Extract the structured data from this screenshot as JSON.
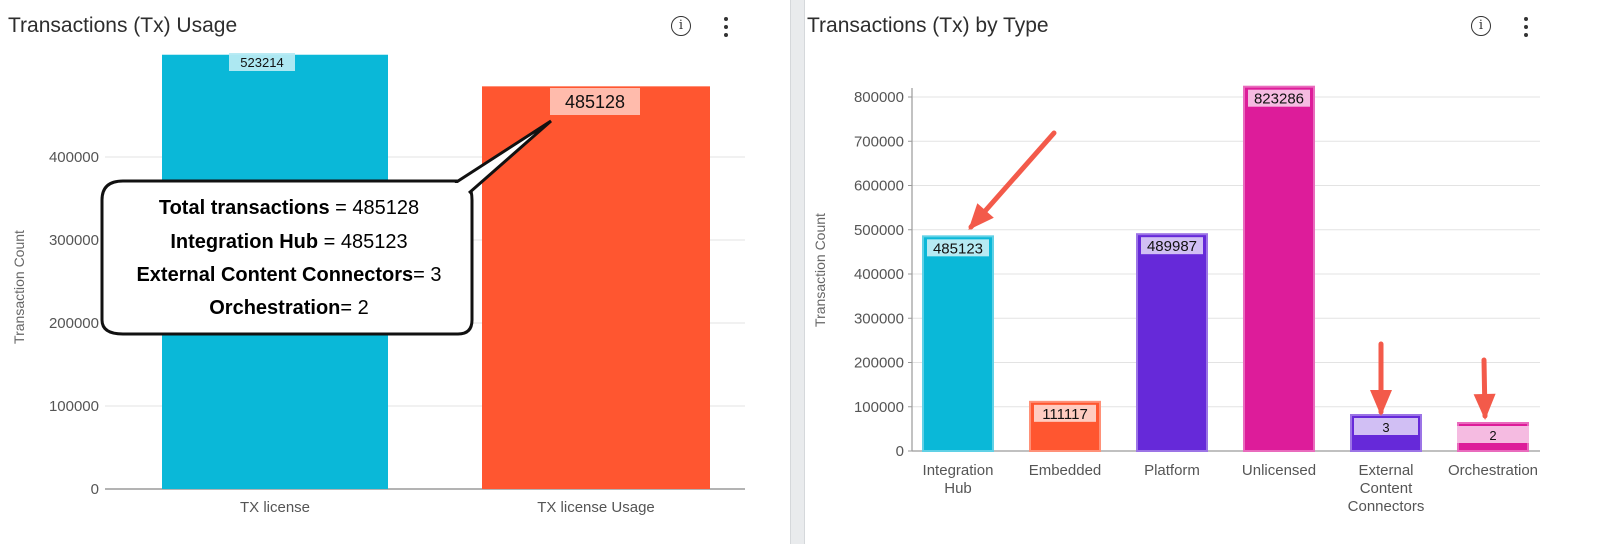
{
  "left_panel": {
    "title": "Transactions (Tx) Usage"
  },
  "right_panel": {
    "title": "Transactions (Tx) by Type"
  },
  "icons": {
    "info": "info-icon",
    "menu": "more-vertical-icon"
  },
  "callout": {
    "lines": [
      {
        "bold": "Total transactions",
        "rest": " = 485128"
      },
      {
        "bold": "Integration Hub",
        "rest": " = 485123"
      },
      {
        "bold": "External Content Connectors",
        "rest": "= 3"
      },
      {
        "bold": "Orchestration",
        "rest": "= 2"
      }
    ]
  },
  "colors": {
    "cyan": "#0ab8d8",
    "orange": "#ff5630",
    "purple": "#6629d9",
    "magenta": "#dd1c9a",
    "arrow": "#f35a4a"
  },
  "chart_data": [
    {
      "type": "bar",
      "title": "Transactions (Tx) Usage",
      "ylabel": "Transaction Count",
      "ylim": [
        0,
        500000
      ],
      "yticks": [
        0,
        100000,
        200000,
        300000,
        400000
      ],
      "grid": true,
      "categories": [
        "TX license",
        "TX license Usage"
      ],
      "values": [
        523214,
        485128
      ],
      "data_labels": [
        "523214",
        "485128"
      ],
      "colors": [
        "#0ab8d8",
        "#ff5630"
      ]
    },
    {
      "type": "bar",
      "title": "Transactions (Tx) by Type",
      "ylabel": "Transaction Count",
      "ylim": [
        0,
        850000
      ],
      "yticks": [
        0,
        100000,
        200000,
        300000,
        400000,
        500000,
        600000,
        700000,
        800000
      ],
      "grid": true,
      "categories": [
        [
          "Integration",
          "Hub"
        ],
        [
          "Embedded"
        ],
        [
          "Platform"
        ],
        [
          "Unlicensed"
        ],
        [
          "External",
          "Content",
          "Connectors"
        ],
        [
          "Orchestration"
        ]
      ],
      "values": [
        485123,
        111117,
        489987,
        823286,
        3,
        2
      ],
      "data_labels": [
        "485123",
        "111117",
        "489987",
        "823286",
        "3",
        "2"
      ],
      "colors": [
        "#0ab8d8",
        "#ff5630",
        "#6629d9",
        "#dd1c9a",
        "#6629d9",
        "#dd1c9a"
      ]
    }
  ]
}
